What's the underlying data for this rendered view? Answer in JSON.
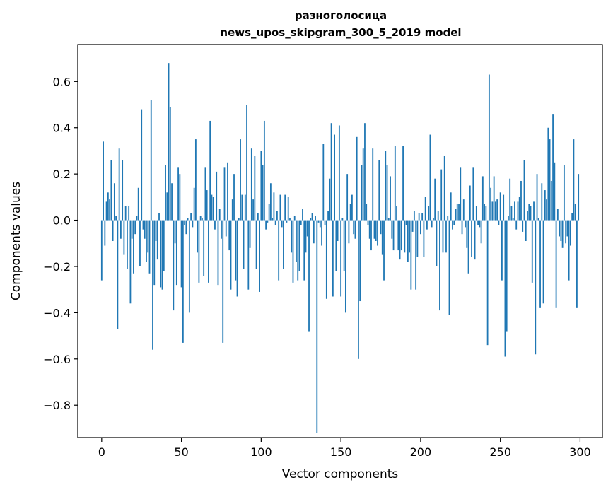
{
  "chart_data": {
    "type": "bar",
    "title": "разноголосица",
    "subtitle": "news_upos_skipgram_300_5_2019 model",
    "xlabel": "Vector components",
    "ylabel": "Components values",
    "xlim": [
      -15,
      314
    ],
    "ylim": [
      -0.94,
      0.76
    ],
    "xticks": [
      0,
      50,
      100,
      150,
      200,
      250,
      300
    ],
    "xtick_labels": [
      "0",
      "50",
      "100",
      "150",
      "200",
      "250",
      "300"
    ],
    "yticks": [
      -0.8,
      -0.6,
      -0.4,
      -0.2,
      0.0,
      0.2,
      0.4,
      0.6
    ],
    "ytick_labels": [
      "−0.8",
      "−0.6",
      "−0.4",
      "−0.2",
      "0.0",
      "0.2",
      "0.4",
      "0.6"
    ],
    "bar_color": "#1f77b4",
    "grid": false,
    "x": [
      0,
      1,
      2,
      3,
      4,
      5,
      6,
      7,
      8,
      9,
      10,
      11,
      12,
      13,
      14,
      15,
      16,
      17,
      18,
      19,
      20,
      21,
      22,
      23,
      24,
      25,
      26,
      27,
      28,
      29,
      30,
      31,
      32,
      33,
      34,
      35,
      36,
      37,
      38,
      39,
      40,
      41,
      42,
      43,
      44,
      45,
      46,
      47,
      48,
      49,
      50,
      51,
      52,
      53,
      54,
      55,
      56,
      57,
      58,
      59,
      60,
      61,
      62,
      63,
      64,
      65,
      66,
      67,
      68,
      69,
      70,
      71,
      72,
      73,
      74,
      75,
      76,
      77,
      78,
      79,
      80,
      81,
      82,
      83,
      84,
      85,
      86,
      87,
      88,
      89,
      90,
      91,
      92,
      93,
      94,
      95,
      96,
      97,
      98,
      99,
      100,
      101,
      102,
      103,
      104,
      105,
      106,
      107,
      108,
      109,
      110,
      111,
      112,
      113,
      114,
      115,
      116,
      117,
      118,
      119,
      120,
      121,
      122,
      123,
      124,
      125,
      126,
      127,
      128,
      129,
      130,
      131,
      132,
      133,
      134,
      135,
      136,
      137,
      138,
      139,
      140,
      141,
      142,
      143,
      144,
      145,
      146,
      147,
      148,
      149,
      150,
      151,
      152,
      153,
      154,
      155,
      156,
      157,
      158,
      159,
      160,
      161,
      162,
      163,
      164,
      165,
      166,
      167,
      168,
      169,
      170,
      171,
      172,
      173,
      174,
      175,
      176,
      177,
      178,
      179,
      180,
      181,
      182,
      183,
      184,
      185,
      186,
      187,
      188,
      189,
      190,
      191,
      192,
      193,
      194,
      195,
      196,
      197,
      198,
      199,
      200,
      201,
      202,
      203,
      204,
      205,
      206,
      207,
      208,
      209,
      210,
      211,
      212,
      213,
      214,
      215,
      216,
      217,
      218,
      219,
      220,
      221,
      222,
      223,
      224,
      225,
      226,
      227,
      228,
      229,
      230,
      231,
      232,
      233,
      234,
      235,
      236,
      237,
      238,
      239,
      240,
      241,
      242,
      243,
      244,
      245,
      246,
      247,
      248,
      249,
      250,
      251,
      252,
      253,
      254,
      255,
      256,
      257,
      258,
      259,
      260,
      261,
      262,
      263,
      264,
      265,
      266,
      267,
      268,
      269,
      270,
      271,
      272,
      273,
      274,
      275,
      276,
      277,
      278,
      279,
      280,
      281,
      282,
      283,
      284,
      285,
      286,
      287,
      288,
      289,
      290,
      291,
      292,
      293,
      294,
      295,
      296,
      297,
      298,
      299
    ],
    "values": [
      -0.26,
      0.34,
      -0.11,
      0.08,
      0.12,
      0.09,
      0.26,
      -0.09,
      0.16,
      0.02,
      -0.47,
      0.31,
      -0.08,
      0.26,
      -0.15,
      0.06,
      -0.21,
      0.06,
      -0.36,
      -0.08,
      -0.23,
      -0.06,
      0.02,
      0.14,
      -0.2,
      0.48,
      -0.04,
      -0.08,
      -0.18,
      -0.14,
      -0.23,
      0.52,
      -0.56,
      -0.28,
      -0.09,
      -0.17,
      0.03,
      -0.29,
      -0.3,
      -0.22,
      0.24,
      0.12,
      0.68,
      0.49,
      0.16,
      -0.39,
      -0.1,
      -0.28,
      0.23,
      0.2,
      -0.29,
      -0.53,
      -0.02,
      -0.06,
      0.01,
      -0.4,
      0.03,
      -0.03,
      0.14,
      0.35,
      -0.14,
      -0.27,
      0.02,
      0.01,
      -0.24,
      0.23,
      0.13,
      -0.27,
      0.43,
      0.11,
      0.1,
      -0.04,
      0.21,
      -0.28,
      0.05,
      -0.08,
      -0.53,
      0.23,
      -0.07,
      0.25,
      -0.13,
      -0.3,
      0.09,
      0.2,
      -0.26,
      -0.33,
      0.01,
      0.35,
      0.11,
      -0.21,
      0.11,
      0.5,
      -0.3,
      -0.12,
      0.31,
      0.09,
      0.28,
      -0.21,
      0.03,
      -0.31,
      0.3,
      0.24,
      0.43,
      -0.04,
      -0.01,
      0.07,
      0.16,
      0.01,
      0.12,
      -0.02,
      0.04,
      -0.26,
      0.11,
      -0.03,
      -0.21,
      0.11,
      -0.01,
      0.1,
      0.01,
      -0.14,
      -0.27,
      0.02,
      -0.18,
      -0.26,
      -0.22,
      -0.02,
      0.05,
      -0.26,
      -0.14,
      -0.07,
      -0.48,
      0.01,
      0.03,
      -0.1,
      0.02,
      -0.92,
      -0.01,
      -0.03,
      -0.11,
      0.33,
      -0.02,
      -0.34,
      0.04,
      0.18,
      0.42,
      -0.33,
      0.37,
      -0.22,
      -0.09,
      0.41,
      -0.33,
      0.01,
      -0.22,
      -0.4,
      0.2,
      -0.1,
      0.07,
      0.11,
      -0.06,
      -0.08,
      0.36,
      -0.6,
      -0.35,
      0.24,
      0.31,
      0.42,
      0.07,
      -0.02,
      -0.08,
      -0.13,
      0.31,
      -0.08,
      -0.09,
      -0.11,
      0.26,
      -0.06,
      -0.15,
      -0.26,
      0.3,
      0.24,
      0.01,
      0.19,
      -0.08,
      -0.13,
      0.32,
      0.06,
      -0.13,
      -0.17,
      -0.13,
      0.32,
      -0.14,
      -0.02,
      -0.18,
      -0.14,
      -0.3,
      -0.05,
      0.04,
      -0.3,
      -0.16,
      0.03,
      -0.06,
      0.03,
      -0.16,
      0.1,
      -0.04,
      0.06,
      0.37,
      -0.03,
      0.01,
      0.18,
      -0.2,
      0.04,
      -0.39,
      0.22,
      -0.14,
      0.28,
      -0.14,
      0.02,
      -0.41,
      0.12,
      -0.04,
      -0.02,
      0.05,
      0.07,
      0.07,
      0.23,
      -0.06,
      0.09,
      -0.03,
      -0.12,
      -0.23,
      0.15,
      -0.16,
      0.23,
      -0.17,
      0.06,
      -0.02,
      -0.03,
      -0.1,
      0.19,
      0.07,
      0.06,
      -0.54,
      0.63,
      0.14,
      0.08,
      0.19,
      0.08,
      0.09,
      -0.02,
      0.12,
      -0.26,
      0.11,
      -0.59,
      -0.48,
      0.02,
      0.18,
      0.06,
      0.01,
      0.08,
      -0.04,
      0.08,
      0.1,
      0.17,
      -0.05,
      0.26,
      -0.09,
      0.04,
      0.07,
      0.06,
      -0.27,
      0.08,
      -0.58,
      0.2,
      0.01,
      -0.38,
      0.16,
      -0.36,
      0.13,
      0.09,
      0.4,
      0.35,
      0.17,
      0.46,
      0.25,
      -0.38,
      0.05,
      -0.07,
      -0.09,
      -0.12,
      0.24,
      -0.1,
      -0.07,
      -0.26,
      -0.11,
      0.03,
      0.35,
      0.07,
      -0.38,
      0.2
    ]
  }
}
